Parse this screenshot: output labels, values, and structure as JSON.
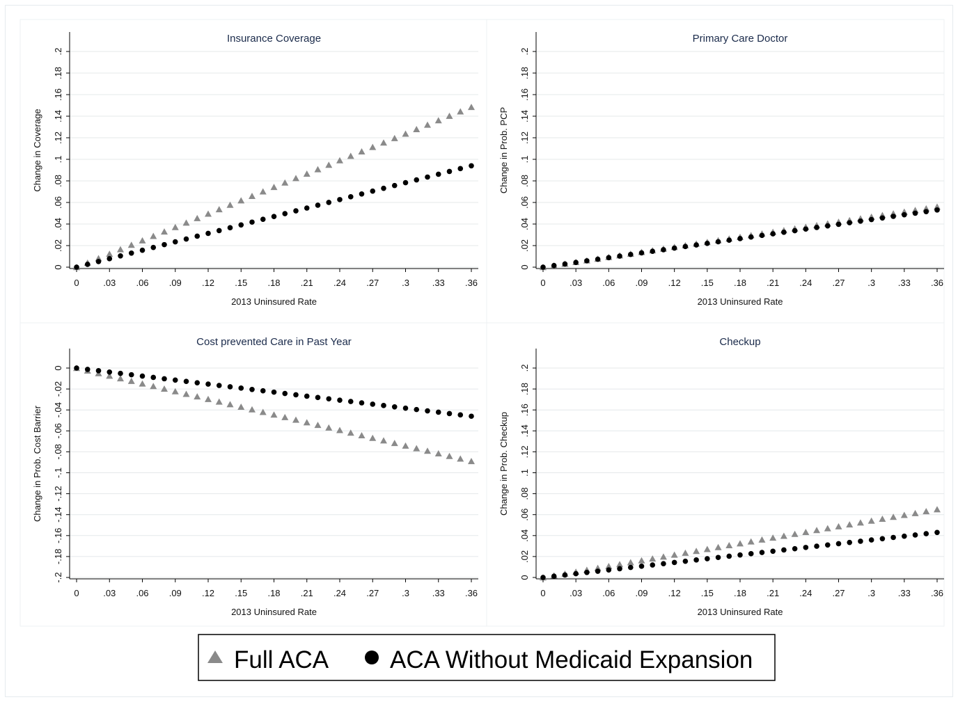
{
  "legend": {
    "items": [
      {
        "label": "Full ACA",
        "marker": "triangle",
        "color": "#8a8a8a"
      },
      {
        "label": "ACA Without Medicaid Expansion",
        "marker": "circle",
        "color": "#000000"
      }
    ]
  },
  "x_tick_labels": [
    "0",
    ".03",
    ".06",
    ".09",
    ".12",
    ".15",
    ".18",
    ".21",
    ".24",
    ".27",
    ".3",
    ".33",
    ".36"
  ],
  "chart_data": [
    {
      "type": "scatter",
      "title": "Insurance Coverage",
      "xlabel": "2013 Uninsured Rate",
      "ylabel": "Change in Coverage",
      "xlim": [
        0,
        0.36
      ],
      "ylim": [
        0,
        0.2
      ],
      "x_step": 0.01,
      "y_ticks": [
        "0",
        ".02",
        ".04",
        ".06",
        ".08",
        ".1",
        ".12",
        ".14",
        ".16",
        ".18",
        ".2"
      ],
      "series": [
        {
          "name": "Full ACA",
          "slope": 0.4125
        },
        {
          "name": "ACA Without Medicaid Expansion",
          "slope": 0.2611
        }
      ]
    },
    {
      "type": "scatter",
      "title": "Primary Care Doctor",
      "xlabel": "2013 Uninsured Rate",
      "ylabel": "Change in Prob. PCP",
      "xlim": [
        0,
        0.36
      ],
      "ylim": [
        0,
        0.2
      ],
      "x_step": 0.01,
      "y_ticks": [
        "0",
        ".02",
        ".04",
        ".06",
        ".08",
        ".1",
        ".12",
        ".14",
        ".16",
        ".18",
        ".2"
      ],
      "series": [
        {
          "name": "Full ACA",
          "slope": 0.1556
        },
        {
          "name": "ACA Without Medicaid Expansion",
          "slope": 0.1472
        }
      ]
    },
    {
      "type": "scatter",
      "title": "Cost prevented Care in Past Year",
      "xlabel": "2013 Uninsured Rate",
      "ylabel": "Change in Prob. Cost Barrier",
      "xlim": [
        0,
        0.36
      ],
      "ylim": [
        -0.2,
        0
      ],
      "x_step": 0.01,
      "y_ticks": [
        "-.2",
        "-.18",
        "-.16",
        "-.14",
        "-.12",
        "-.1",
        "-.08",
        "-.06",
        "-.04",
        "-.02",
        "0"
      ],
      "series": [
        {
          "name": "Full ACA",
          "slope": -0.2472
        },
        {
          "name": "ACA Without Medicaid Expansion",
          "slope": -0.1278
        }
      ]
    },
    {
      "type": "scatter",
      "title": "Checkup",
      "xlabel": "2013 Uninsured Rate",
      "ylabel": "Change in Prob. Checkup",
      "xlim": [
        0,
        0.36
      ],
      "ylim": [
        0,
        0.2
      ],
      "x_step": 0.01,
      "y_ticks": [
        "0",
        ".02",
        ".04",
        ".06",
        ".08",
        ".1",
        ".12",
        ".14",
        ".16",
        ".18",
        ".2"
      ],
      "series": [
        {
          "name": "Full ACA",
          "slope": 0.1806
        },
        {
          "name": "ACA Without Medicaid Expansion",
          "slope": 0.1194
        }
      ]
    }
  ]
}
